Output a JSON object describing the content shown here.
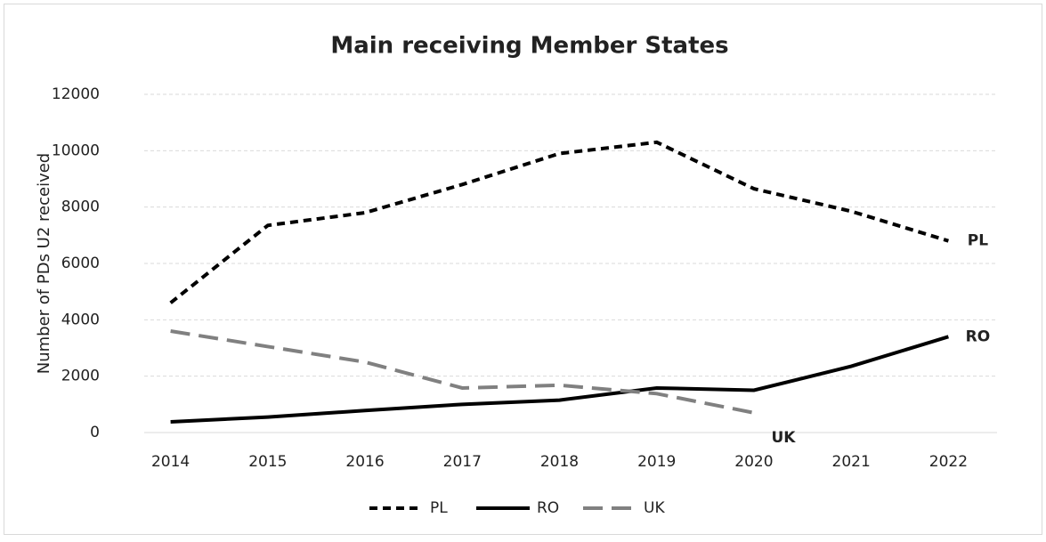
{
  "chart_data": {
    "type": "line",
    "title": "Main receiving Member States",
    "y_label": "Number of PDs U2 received",
    "categories": [
      "2014",
      "2015",
      "2016",
      "2017",
      "2018",
      "2019",
      "2020",
      "2021",
      "2022"
    ],
    "series": [
      {
        "name": "PL",
        "color": "#000000",
        "style": "dash",
        "values": [
          4600,
          7350,
          7800,
          8800,
          9900,
          10300,
          8650,
          7850,
          6800
        ]
      },
      {
        "name": "RO",
        "color": "#000000",
        "style": "solid",
        "values": [
          380,
          550,
          780,
          1000,
          1150,
          1580,
          1500,
          2350,
          3400
        ]
      },
      {
        "name": "UK",
        "color": "#808080",
        "style": "long-dash",
        "values": [
          3600,
          3050,
          2500,
          1580,
          1680,
          1380,
          700,
          null,
          null
        ]
      }
    ],
    "ylim": [
      0,
      12000
    ],
    "yticks": [
      0,
      2000,
      4000,
      6000,
      8000,
      10000,
      12000
    ],
    "grid": true,
    "legend": "bottom",
    "end_labels": true
  }
}
